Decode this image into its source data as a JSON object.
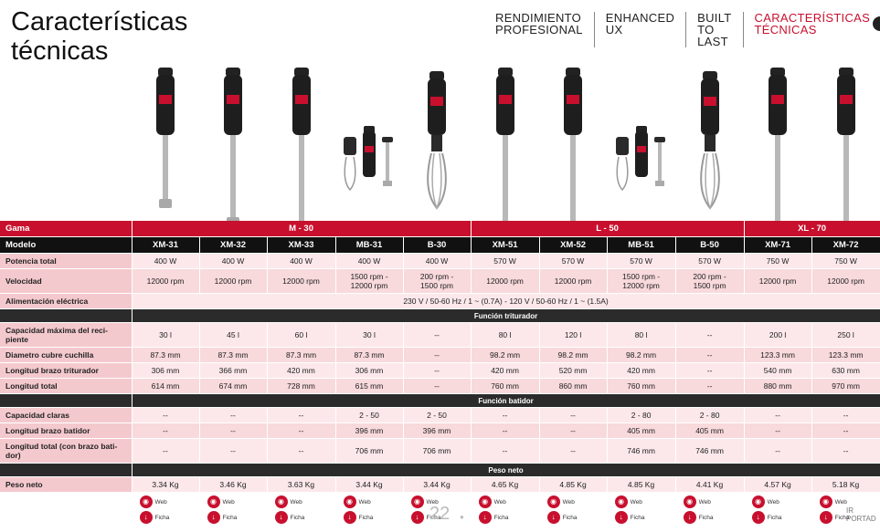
{
  "title_line1": "Características",
  "title_line2": "técnicas",
  "nav": [
    {
      "label": "RENDIMIENTO\nPROFESIONAL"
    },
    {
      "label": "ENHANCED\nUX"
    },
    {
      "label": "BUILT\nTO LAST"
    },
    {
      "label": "CARACTERÍSTICAS\nTÉCNICAS"
    }
  ],
  "colors": {
    "accent": "#c8102e",
    "header_dark": "#111111",
    "row_pink": "#fce8ea"
  },
  "table": {
    "gama_label": "Gama",
    "gamas": [
      {
        "name": "M - 30",
        "span": 5
      },
      {
        "name": "L - 50",
        "span": 4
      },
      {
        "name": "XL - 70",
        "span": 2
      }
    ],
    "modelo_label": "Modelo",
    "models": [
      "XM-31",
      "XM-32",
      "XM-33",
      "MB-31",
      "B-30",
      "XM-51",
      "XM-52",
      "MB-51",
      "B-50",
      "XM-71",
      "XM-72"
    ],
    "potencia_label": "Potencia total",
    "potencia": [
      "400 W",
      "400 W",
      "400 W",
      "400 W",
      "400 W",
      "570 W",
      "570 W",
      "570 W",
      "570 W",
      "750 W",
      "750 W"
    ],
    "velocidad_label": "Velocidad",
    "velocidad": [
      "12000 rpm",
      "12000 rpm",
      "12000 rpm",
      "1500 rpm -\n12000 rpm",
      "200 rpm -\n1500 rpm",
      "12000 rpm",
      "12000 rpm",
      "1500 rpm -\n12000 rpm",
      "200 rpm -\n1500 rpm",
      "12000 rpm",
      "12000 rpm"
    ],
    "alimentacion_label": "Alimentación eléctrica",
    "alimentacion": "230 V / 50-60 Hz / 1 ~ (0.7A) - 120 V / 50-60 Hz / 1 ~ (1.5A)",
    "section_triturador": "Función triturador",
    "capacidad_max_label": "Capacidad máxima del reci-\npiente",
    "capacidad_max": [
      "30 l",
      "45 l",
      "60 l",
      "30 l",
      "--",
      "80 l",
      "120 l",
      "80 l",
      "--",
      "200 l",
      "250 l"
    ],
    "diametro_label": "Diametro cubre cuchilla",
    "diametro": [
      "87.3 mm",
      "87.3 mm",
      "87.3 mm",
      "87.3 mm",
      "--",
      "98.2 mm",
      "98.2 mm",
      "98.2 mm",
      "--",
      "123.3 mm",
      "123.3 mm"
    ],
    "brazo_triturador_label": "Longitud brazo triturador",
    "brazo_triturador": [
      "306 mm",
      "366 mm",
      "420 mm",
      "306 mm",
      "--",
      "420 mm",
      "520 mm",
      "420 mm",
      "--",
      "540 mm",
      "630 mm"
    ],
    "longitud_total_label": "Longitud total",
    "longitud_total": [
      "614 mm",
      "674 mm",
      "728 mm",
      "615 mm",
      "--",
      "760 mm",
      "860 mm",
      "760 mm",
      "--",
      "880 mm",
      "970 mm"
    ],
    "section_batidor": "Función batidor",
    "capacidad_claras_label": "Capacidad claras",
    "capacidad_claras": [
      "--",
      "--",
      "--",
      "2 - 50",
      "2 - 50",
      "--",
      "--",
      "2 - 80",
      "2 - 80",
      "--",
      "--"
    ],
    "brazo_batidor_label": "Longitud brazo batidor",
    "brazo_batidor": [
      "--",
      "--",
      "--",
      "396 mm",
      "396 mm",
      "--",
      "--",
      "405 mm",
      "405 mm",
      "--",
      "--"
    ],
    "longitud_batidor_label": "Longitud total (con brazo bati-\ndor)",
    "longitud_batidor": [
      "--",
      "--",
      "--",
      "706 mm",
      "706 mm",
      "--",
      "--",
      "746 mm",
      "746 mm",
      "--",
      "--"
    ],
    "section_peso": "Peso neto",
    "peso_label": "Peso neto",
    "peso": [
      "3.34 Kg",
      "3.46 Kg",
      "3.63 Kg",
      "3.44 Kg",
      "3.44 Kg",
      "4.65 Kg",
      "4.85 Kg",
      "4.85 Kg",
      "4.41 Kg",
      "4.57 Kg",
      "5.18 Kg"
    ]
  },
  "buttons": {
    "web": "Web",
    "ficha": "Ficha"
  },
  "footer": {
    "page_number": "22",
    "ir_portada": "IR\nPORTAD"
  }
}
